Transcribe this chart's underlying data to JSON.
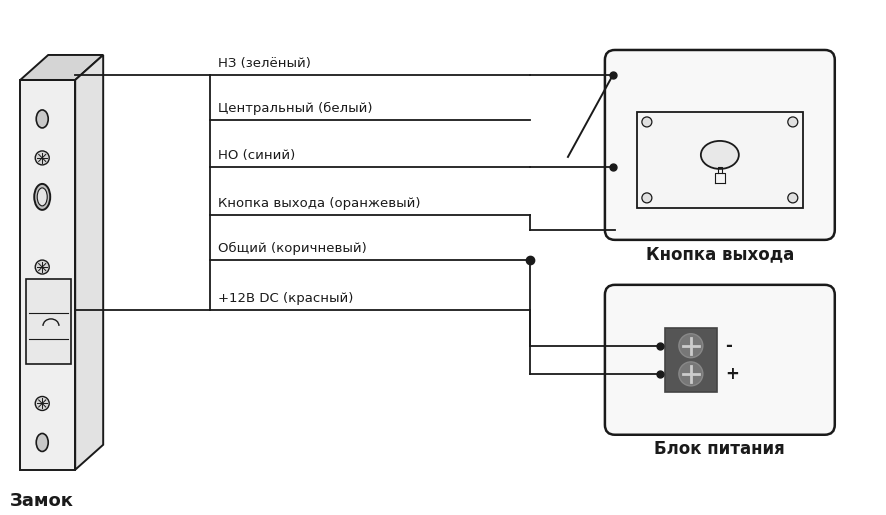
{
  "bg_color": "#ffffff",
  "line_color": "#1a1a1a",
  "wire_color": "#1a1a1a",
  "lock_label": "Замок",
  "button_label": "Кнопка выхода",
  "psu_label": "Блок питания",
  "wire_labels": [
    "НЗ (зелёный)",
    "Центральный (белый)",
    "НО (синий)",
    "Кнопка выхода (оранжевый)",
    "Общий (коричневый)",
    "+12В DC (красный)"
  ],
  "figsize": [
    8.87,
    5.15
  ],
  "dpi": 100
}
